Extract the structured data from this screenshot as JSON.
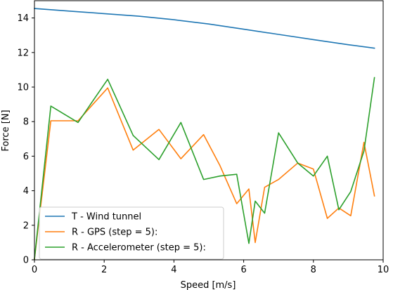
{
  "chart_data": {
    "type": "line",
    "title": "",
    "xlabel": "Speed [m/s]",
    "ylabel": "Force [N]",
    "xlim": [
      0,
      10
    ],
    "ylim": [
      0,
      15
    ],
    "xticks": [
      0,
      2,
      4,
      6,
      8,
      10
    ],
    "yticks": [
      0,
      2,
      4,
      6,
      8,
      10,
      12,
      14
    ],
    "grid": false,
    "legend_position": "lower-left",
    "series": [
      {
        "name": "T - Wind tunnel",
        "color": "#1f77b4",
        "x": [
          0,
          1,
          2,
          3,
          4,
          5,
          6,
          7,
          8,
          9,
          9.75
        ],
        "y": [
          14.55,
          14.4,
          14.25,
          14.1,
          13.9,
          13.65,
          13.35,
          13.05,
          12.75,
          12.45,
          12.25
        ]
      },
      {
        "name": "R - GPS (step = 5):",
        "color": "#ff7f0e",
        "x": [
          0,
          0.47,
          1.25,
          2.1,
          2.83,
          3.57,
          4.2,
          4.85,
          5.32,
          5.8,
          6.15,
          6.33,
          6.6,
          7.0,
          7.55,
          8.0,
          8.4,
          8.73,
          9.07,
          9.45,
          9.75
        ],
        "y": [
          0.05,
          8.05,
          8.05,
          9.95,
          6.35,
          7.55,
          5.85,
          7.25,
          5.45,
          3.25,
          4.1,
          1.0,
          4.2,
          4.65,
          5.6,
          5.25,
          2.4,
          3.0,
          2.55,
          6.8,
          3.7
        ]
      },
      {
        "name": "R - Accelerometer (step = 5):",
        "color": "#2ca02c",
        "x": [
          0,
          0.47,
          1.25,
          2.1,
          2.83,
          3.57,
          4.2,
          4.85,
          5.32,
          5.8,
          6.15,
          6.33,
          6.6,
          7.0,
          7.55,
          8.0,
          8.4,
          8.73,
          9.07,
          9.45,
          9.75
        ],
        "y": [
          0.05,
          8.9,
          7.95,
          10.45,
          7.2,
          5.8,
          7.95,
          4.65,
          4.85,
          4.95,
          0.95,
          3.4,
          2.7,
          7.35,
          5.6,
          4.85,
          6.0,
          2.9,
          3.95,
          6.3,
          10.55
        ]
      }
    ]
  }
}
